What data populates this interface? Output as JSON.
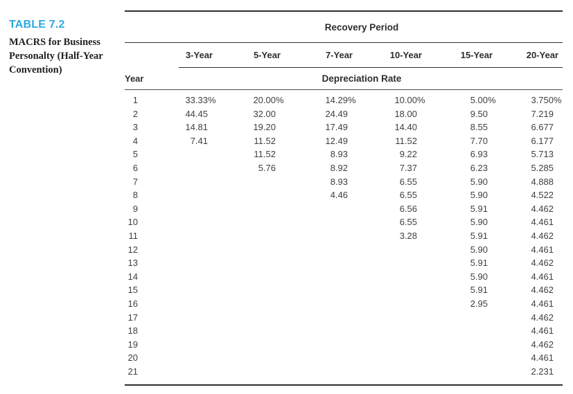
{
  "caption": {
    "label": "TABLE 7.2",
    "title_lines": [
      "MACRS for Business",
      "Personalty (Half-Year",
      "Convention)"
    ]
  },
  "table": {
    "group_header": "Recovery Period",
    "year_header": "Year",
    "subheader": "Depreciation Rate",
    "columns": [
      "3-Year",
      "5-Year",
      "7-Year",
      "10-Year",
      "15-Year",
      "20-Year"
    ],
    "rows": [
      {
        "year": "1",
        "values": [
          "33.33%",
          "20.00%",
          "14.29%",
          "10.00%",
          "5.00%",
          "3.750%"
        ]
      },
      {
        "year": "2",
        "values": [
          "44.45",
          "32.00",
          "24.49",
          "18.00",
          "9.50",
          "7.219"
        ]
      },
      {
        "year": "3",
        "values": [
          "14.81",
          "19.20",
          "17.49",
          "14.40",
          "8.55",
          "6.677"
        ]
      },
      {
        "year": "4",
        "values": [
          "7.41",
          "11.52",
          "12.49",
          "11.52",
          "7.70",
          "6.177"
        ]
      },
      {
        "year": "5",
        "values": [
          "",
          "11.52",
          "8.93",
          "9.22",
          "6.93",
          "5.713"
        ]
      },
      {
        "year": "6",
        "values": [
          "",
          "5.76",
          "8.92",
          "7.37",
          "6.23",
          "5.285"
        ]
      },
      {
        "year": "7",
        "values": [
          "",
          "",
          "8.93",
          "6.55",
          "5.90",
          "4.888"
        ]
      },
      {
        "year": "8",
        "values": [
          "",
          "",
          "4.46",
          "6.55",
          "5.90",
          "4.522"
        ]
      },
      {
        "year": "9",
        "values": [
          "",
          "",
          "",
          "6.56",
          "5.91",
          "4.462"
        ]
      },
      {
        "year": "10",
        "values": [
          "",
          "",
          "",
          "6.55",
          "5.90",
          "4.461"
        ]
      },
      {
        "year": "11",
        "values": [
          "",
          "",
          "",
          "3.28",
          "5.91",
          "4.462"
        ]
      },
      {
        "year": "12",
        "values": [
          "",
          "",
          "",
          "",
          "5.90",
          "4.461"
        ]
      },
      {
        "year": "13",
        "values": [
          "",
          "",
          "",
          "",
          "5.91",
          "4.462"
        ]
      },
      {
        "year": "14",
        "values": [
          "",
          "",
          "",
          "",
          "5.90",
          "4.461"
        ]
      },
      {
        "year": "15",
        "values": [
          "",
          "",
          "",
          "",
          "5.91",
          "4.462"
        ]
      },
      {
        "year": "16",
        "values": [
          "",
          "",
          "",
          "",
          "2.95",
          "4.461"
        ]
      },
      {
        "year": "17",
        "values": [
          "",
          "",
          "",
          "",
          "",
          "4.462"
        ]
      },
      {
        "year": "18",
        "values": [
          "",
          "",
          "",
          "",
          "",
          "4.461"
        ]
      },
      {
        "year": "19",
        "values": [
          "",
          "",
          "",
          "",
          "",
          "4.462"
        ]
      },
      {
        "year": "20",
        "values": [
          "",
          "",
          "",
          "",
          "",
          "4.461"
        ]
      },
      {
        "year": "21",
        "values": [
          "",
          "",
          "",
          "",
          "",
          "2.231"
        ]
      }
    ]
  },
  "colors": {
    "accent": "#29a9e0",
    "text": "#3f3f3f",
    "rule": "#2e2e2e"
  }
}
